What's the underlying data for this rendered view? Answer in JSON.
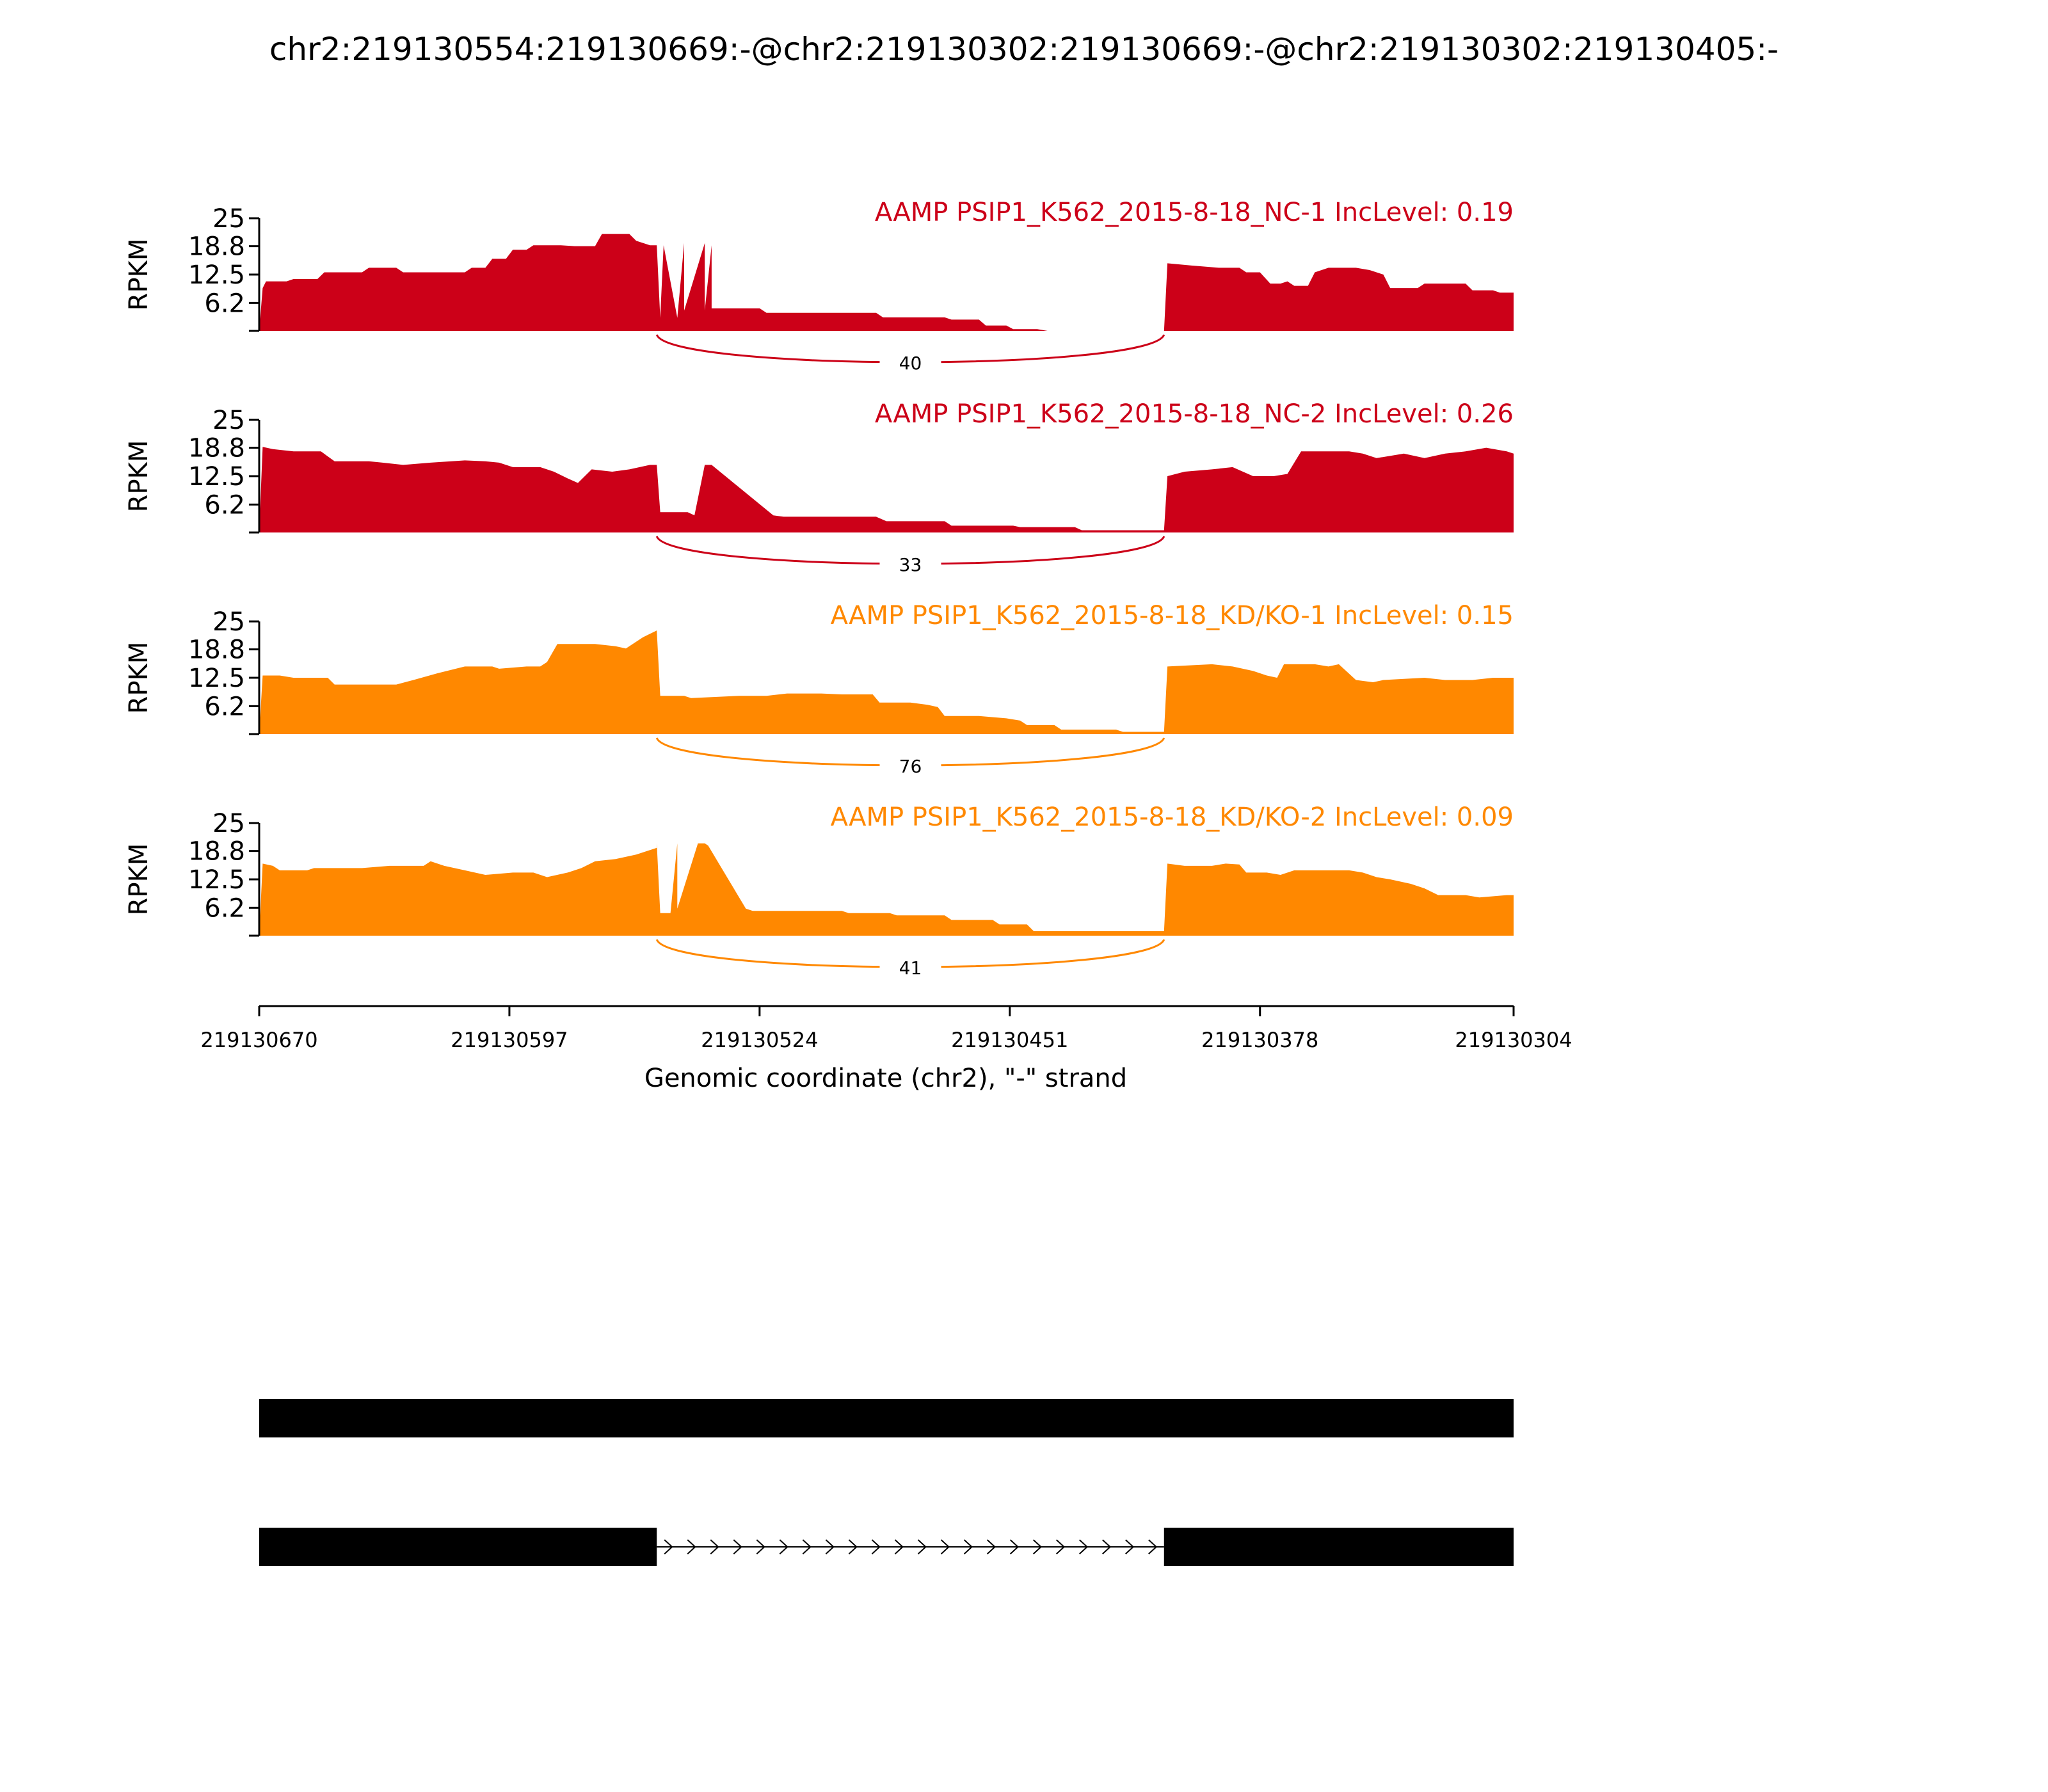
{
  "page_title": "chr2:219130554:219130669:-@chr2:219130302:219130669:-@chr2:219130302:219130405:-",
  "colors": {
    "group_nc": "#cc0018",
    "group_kd": "#ff8800",
    "axis": "#000000",
    "gene_model": "#000000"
  },
  "chart_data": {
    "type": "area",
    "xlabel": "Genomic coordinate (chr2), \"-\" strand",
    "x_reversed": true,
    "xlim": [
      219130670,
      219130304
    ],
    "xticks": [
      "219130670",
      "219130597",
      "219130524",
      "219130451",
      "219130378",
      "219130304"
    ],
    "ylabel": "RPKM",
    "ylim": [
      0,
      25
    ],
    "yticks": [
      "25",
      "18.8",
      "12.5",
      "6.2"
    ],
    "tracks": [
      {
        "label": "AAMP PSIP1_K562_2015-8-18_NC-1 IncLevel: 0.19",
        "group": "group_nc",
        "junction_count": "40",
        "coverage": [
          [
            219130670,
            0
          ],
          [
            219130669,
            9.5
          ],
          [
            219130668,
            11
          ],
          [
            219130662,
            11
          ],
          [
            219130660,
            11.5
          ],
          [
            219130653,
            11.5
          ],
          [
            219130651,
            13
          ],
          [
            219130640,
            13
          ],
          [
            219130638,
            14
          ],
          [
            219130630,
            14
          ],
          [
            219130628,
            13
          ],
          [
            219130610,
            13
          ],
          [
            219130608,
            14
          ],
          [
            219130604,
            14
          ],
          [
            219130602,
            16
          ],
          [
            219130598,
            16
          ],
          [
            219130596,
            18
          ],
          [
            219130592,
            18
          ],
          [
            219130590,
            19
          ],
          [
            219130582,
            19
          ],
          [
            219130578,
            18.8
          ],
          [
            219130572,
            18.8
          ],
          [
            219130570,
            21.5
          ],
          [
            219130562,
            21.5
          ],
          [
            219130560,
            20
          ],
          [
            219130552,
            19
          ],
          [
            219130546,
            19.5
          ],
          [
            219130540,
            19.5
          ],
          [
            219130538,
            19
          ],
          [
            219130556,
            19
          ],
          [
            219130555,
            19
          ],
          [
            219130554,
            19
          ],
          [
            219130553,
            2.9
          ],
          [
            219130548,
            2.9
          ],
          [
            219130546,
            4.5
          ],
          [
            219130540,
            4.5
          ],
          [
            219130538,
            5
          ],
          [
            219130524,
            5
          ],
          [
            219130522,
            4
          ],
          [
            219130500,
            4
          ],
          [
            219130497,
            4
          ],
          [
            219130490,
            4
          ],
          [
            219130488,
            3
          ],
          [
            219130470,
            3
          ],
          [
            219130468,
            2.5
          ],
          [
            219130460,
            2.5
          ],
          [
            219130458,
            1.2
          ],
          [
            219130452,
            1.2
          ],
          [
            219130450,
            0.4
          ],
          [
            219130443,
            0.4
          ],
          [
            219130440,
            0
          ],
          [
            219130406,
            0
          ],
          [
            219130405,
            15
          ],
          [
            219130398,
            14.5
          ],
          [
            219130390,
            14
          ],
          [
            219130384,
            14
          ],
          [
            219130382,
            13
          ],
          [
            219130378,
            13
          ],
          [
            219130375,
            10.5
          ],
          [
            219130372,
            10.5
          ],
          [
            219130370,
            11
          ],
          [
            219130368,
            10
          ],
          [
            219130364,
            10
          ],
          [
            219130362,
            13
          ],
          [
            219130358,
            14
          ],
          [
            219130350,
            14
          ],
          [
            219130346,
            13.5
          ],
          [
            219130342,
            12.5
          ],
          [
            219130340,
            9.5
          ],
          [
            219130332,
            9.5
          ],
          [
            219130330,
            10.5
          ],
          [
            219130318,
            10.5
          ],
          [
            219130316,
            9
          ],
          [
            219130310,
            9
          ],
          [
            219130308,
            8.5
          ],
          [
            219130304,
            8.5
          ]
        ]
      },
      {
        "label": "AAMP PSIP1_K562_2015-8-18_NC-2 IncLevel: 0.26",
        "group": "group_nc",
        "junction_count": "33",
        "coverage": [
          [
            219130670,
            0
          ],
          [
            219130669,
            19
          ],
          [
            219130666,
            18.5
          ],
          [
            219130660,
            18
          ],
          [
            219130652,
            18
          ],
          [
            219130648,
            15.8
          ],
          [
            219130638,
            15.8
          ],
          [
            219130634,
            15.5
          ],
          [
            219130628,
            15
          ],
          [
            219130620,
            15.5
          ],
          [
            219130610,
            16
          ],
          [
            219130604,
            15.8
          ],
          [
            219130600,
            15.5
          ],
          [
            219130596,
            14.5
          ],
          [
            219130588,
            14.5
          ],
          [
            219130584,
            13.5
          ],
          [
            219130580,
            12
          ],
          [
            219130577,
            11
          ],
          [
            219130573,
            14
          ],
          [
            219130567,
            13.5
          ],
          [
            219130562,
            14
          ],
          [
            219130556,
            15
          ],
          [
            219130540,
            15
          ],
          [
            219130538,
            15
          ],
          [
            219130554,
            15
          ],
          [
            219130553,
            4.5
          ],
          [
            219130545,
            4.5
          ],
          [
            219130543,
            3.8
          ],
          [
            219130520,
            3.8
          ],
          [
            219130517,
            3.5
          ],
          [
            219130490,
            3.5
          ],
          [
            219130487,
            2.5
          ],
          [
            219130470,
            2.5
          ],
          [
            219130468,
            1.5
          ],
          [
            219130450,
            1.5
          ],
          [
            219130448,
            1.2
          ],
          [
            219130432,
            1.2
          ],
          [
            219130430,
            0.5
          ],
          [
            219130406,
            0.5
          ],
          [
            219130405,
            12.5
          ],
          [
            219130400,
            13.5
          ],
          [
            219130392,
            14
          ],
          [
            219130386,
            14.5
          ],
          [
            219130380,
            12.5
          ],
          [
            219130374,
            12.5
          ],
          [
            219130370,
            13
          ],
          [
            219130366,
            18
          ],
          [
            219130352,
            18
          ],
          [
            219130348,
            17.5
          ],
          [
            219130344,
            16.5
          ],
          [
            219130336,
            17.5
          ],
          [
            219130330,
            16.5
          ],
          [
            219130324,
            17.5
          ],
          [
            219130318,
            18
          ],
          [
            219130312,
            18.8
          ],
          [
            219130306,
            18
          ],
          [
            219130304,
            17.5
          ]
        ]
      },
      {
        "label": "AAMP PSIP1_K562_2015-8-18_KD/KO-1 IncLevel: 0.15",
        "group": "group_kd",
        "junction_count": "76",
        "coverage": [
          [
            219130670,
            0
          ],
          [
            219130669,
            13
          ],
          [
            219130664,
            13
          ],
          [
            219130660,
            12.5
          ],
          [
            219130650,
            12.5
          ],
          [
            219130648,
            11
          ],
          [
            219130646,
            11
          ],
          [
            219130640,
            11
          ],
          [
            219130630,
            11
          ],
          [
            219130625,
            12
          ],
          [
            219130618,
            13.5
          ],
          [
            219130610,
            15
          ],
          [
            219130602,
            15
          ],
          [
            219130600,
            14.5
          ],
          [
            219130592,
            15
          ],
          [
            219130588,
            15
          ],
          [
            219130586,
            16
          ],
          [
            219130583,
            20
          ],
          [
            219130578,
            20
          ],
          [
            219130572,
            20
          ],
          [
            219130566,
            19.5
          ],
          [
            219130563,
            19
          ],
          [
            219130558,
            21.5
          ],
          [
            219130554,
            23
          ],
          [
            219130554,
            23
          ],
          [
            219130553,
            8.5
          ],
          [
            219130546,
            8.5
          ],
          [
            219130544,
            8
          ],
          [
            219130530,
            8.5
          ],
          [
            219130522,
            8.5
          ],
          [
            219130516,
            9
          ],
          [
            219130506,
            9
          ],
          [
            219130500,
            8.8
          ],
          [
            219130491,
            8.8
          ],
          [
            219130489,
            7
          ],
          [
            219130480,
            7
          ],
          [
            219130475,
            6.5
          ],
          [
            219130472,
            6
          ],
          [
            219130470,
            4
          ],
          [
            219130460,
            4
          ],
          [
            219130452,
            3.5
          ],
          [
            219130448,
            3
          ],
          [
            219130446,
            2
          ],
          [
            219130438,
            2
          ],
          [
            219130436,
            1
          ],
          [
            219130420,
            1
          ],
          [
            219130418,
            0.5
          ],
          [
            219130406,
            0.5
          ],
          [
            219130405,
            15
          ],
          [
            219130392,
            15.5
          ],
          [
            219130386,
            15
          ],
          [
            219130380,
            14
          ],
          [
            219130376,
            13
          ],
          [
            219130373,
            12.5
          ],
          [
            219130371,
            15.5
          ],
          [
            219130362,
            15.5
          ],
          [
            219130358,
            15
          ],
          [
            219130355,
            15.5
          ],
          [
            219130350,
            12
          ],
          [
            219130345,
            11.5
          ],
          [
            219130342,
            12
          ],
          [
            219130330,
            12.5
          ],
          [
            219130324,
            12
          ],
          [
            219130316,
            12
          ],
          [
            219130310,
            12.5
          ],
          [
            219130304,
            12.5
          ]
        ]
      },
      {
        "label": "AAMP PSIP1_K562_2015-8-18_KD/KO-2 IncLevel: 0.09",
        "group": "group_kd",
        "junction_count": "41",
        "coverage": [
          [
            219130670,
            0
          ],
          [
            219130669,
            16
          ],
          [
            219130666,
            15.5
          ],
          [
            219130664,
            14.5
          ],
          [
            219130656,
            14.5
          ],
          [
            219130654,
            15
          ],
          [
            219130646,
            15
          ],
          [
            219130640,
            15
          ],
          [
            219130632,
            15.5
          ],
          [
            219130622,
            15.5
          ],
          [
            219130620,
            16.5
          ],
          [
            219130616,
            15.5
          ],
          [
            219130610,
            14.5
          ],
          [
            219130604,
            13.5
          ],
          [
            219130596,
            14
          ],
          [
            219130590,
            14
          ],
          [
            219130586,
            13
          ],
          [
            219130580,
            14
          ],
          [
            219130576,
            15
          ],
          [
            219130572,
            16.5
          ],
          [
            219130566,
            17
          ],
          [
            219130560,
            18
          ],
          [
            219130554,
            19.5
          ],
          [
            219130548,
            20.5
          ],
          [
            219130542,
            20.5
          ],
          [
            219130540,
            20.5
          ],
          [
            219130539,
            20
          ],
          [
            219130554,
            20.5
          ],
          [
            219130553,
            5
          ],
          [
            219130550,
            5
          ],
          [
            219130548,
            6
          ],
          [
            219130528,
            6
          ],
          [
            219130526,
            5.5
          ],
          [
            219130500,
            5.5
          ],
          [
            219130498,
            5
          ],
          [
            219130486,
            5
          ],
          [
            219130484,
            4.5
          ],
          [
            219130470,
            4.5
          ],
          [
            219130468,
            3.5
          ],
          [
            219130456,
            3.5
          ],
          [
            219130454,
            2.5
          ],
          [
            219130446,
            2.5
          ],
          [
            219130444,
            1
          ],
          [
            219130406,
            1
          ],
          [
            219130405,
            16
          ],
          [
            219130400,
            15.5
          ],
          [
            219130392,
            15.5
          ],
          [
            219130388,
            16
          ],
          [
            219130384,
            15.8
          ],
          [
            219130382,
            14
          ],
          [
            219130376,
            14
          ],
          [
            219130372,
            13.5
          ],
          [
            219130368,
            14.5
          ],
          [
            219130352,
            14.5
          ],
          [
            219130348,
            14
          ],
          [
            219130344,
            13
          ],
          [
            219130340,
            12.5
          ],
          [
            219130334,
            11.5
          ],
          [
            219130330,
            10.5
          ],
          [
            219130326,
            9
          ],
          [
            219130318,
            9
          ],
          [
            219130314,
            8.5
          ],
          [
            219130306,
            9
          ],
          [
            219130304,
            9
          ]
        ]
      }
    ]
  },
  "gene_model": {
    "isoforms": [
      {
        "exons": [
          [
            219130670,
            219130304
          ]
        ],
        "introns": []
      },
      {
        "exons": [
          [
            219130670,
            219130554
          ],
          [
            219130406,
            219130304
          ]
        ],
        "introns": [
          [
            219130554,
            219130406
          ]
        ]
      }
    ]
  }
}
